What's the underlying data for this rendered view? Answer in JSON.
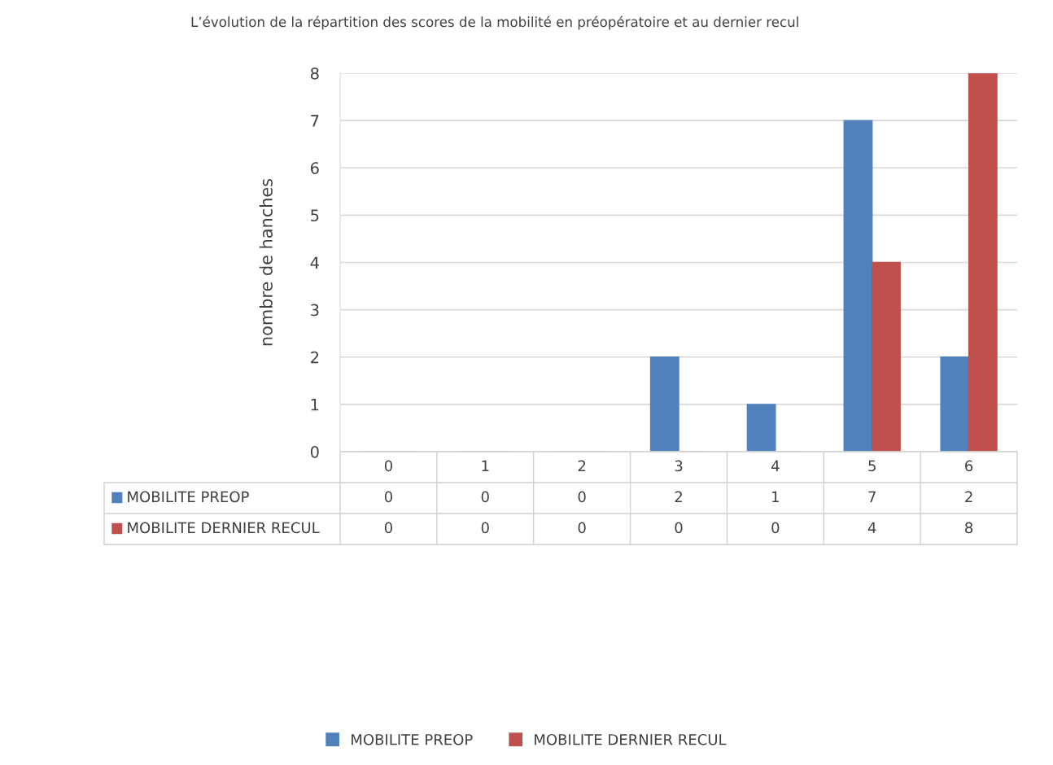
{
  "chart_data": {
    "type": "bar",
    "title": "L’évolution de la répartition des scores de la mobilité en préopératoire et au dernier recul",
    "ylabel": "nombre de hanches",
    "categories": [
      "0",
      "1",
      "2",
      "3",
      "4",
      "5",
      "6"
    ],
    "series": [
      {
        "name": "MOBILITE PREOP",
        "color": "#4f81bd",
        "values": [
          0,
          0,
          0,
          2,
          1,
          7,
          2
        ]
      },
      {
        "name": "MOBILITE DERNIER RECUL",
        "color": "#c0504d",
        "values": [
          0,
          0,
          0,
          0,
          0,
          4,
          8
        ]
      }
    ],
    "ylim": [
      0,
      8
    ],
    "yticks": [
      0,
      1,
      2,
      3,
      4,
      5,
      6,
      7,
      8
    ],
    "grid": "y",
    "legend": "bottom",
    "data_labels": true
  }
}
